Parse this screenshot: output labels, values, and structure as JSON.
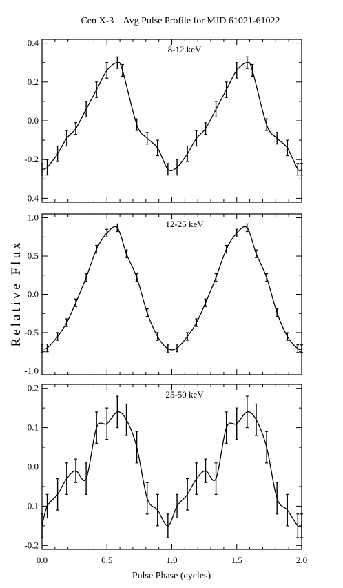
{
  "chart_data": {
    "type": "line",
    "title": "Cen X-3    Avg Pulse Profile for MJD 61021-61022",
    "xlabel": "Pulse Phase (cycles)",
    "ylabel": "Relative Flux",
    "xlim": [
      0.0,
      2.0
    ],
    "x_ticks": [
      "0.0",
      "0.5",
      "1.0",
      "1.5",
      "2.0"
    ],
    "grid": false,
    "panels": [
      {
        "label": "8-12 keV",
        "ylim": [
          -0.42,
          0.42
        ],
        "y_ticks": [
          "0.4",
          "0.2",
          "0.0",
          "-0.2",
          "-0.4"
        ],
        "y_tick_values": [
          0.4,
          0.2,
          0.0,
          -0.2,
          -0.4
        ],
        "x": [
          0.0,
          0.04,
          0.12,
          0.19,
          0.26,
          0.34,
          0.42,
          0.5,
          0.58,
          0.62,
          0.73,
          0.81,
          0.89,
          0.97,
          1.04,
          1.12,
          1.19,
          1.26,
          1.34,
          1.42,
          1.5,
          1.58,
          1.62,
          1.73,
          1.81,
          1.89,
          1.97,
          2.0
        ],
        "y": [
          -0.25,
          -0.24,
          -0.17,
          -0.09,
          -0.04,
          0.06,
          0.16,
          0.26,
          0.3,
          0.26,
          -0.02,
          -0.09,
          -0.14,
          -0.25,
          -0.24,
          -0.17,
          -0.09,
          -0.04,
          0.06,
          0.16,
          0.26,
          0.3,
          0.26,
          -0.02,
          -0.09,
          -0.14,
          -0.25,
          -0.25
        ],
        "err": [
          0.03,
          0.04,
          0.04,
          0.04,
          0.03,
          0.04,
          0.04,
          0.04,
          0.03,
          0.03,
          0.03,
          0.03,
          0.04,
          0.03,
          0.04,
          0.04,
          0.04,
          0.03,
          0.04,
          0.04,
          0.04,
          0.03,
          0.03,
          0.03,
          0.03,
          0.04,
          0.03,
          0.03
        ]
      },
      {
        "label": "12-25 keV",
        "ylim": [
          -1.05,
          1.05
        ],
        "y_ticks": [
          "1.0",
          "0.5",
          "0.0",
          "-0.5",
          "-1.0"
        ],
        "y_tick_values": [
          1.0,
          0.5,
          0.0,
          -0.5,
          -1.0
        ],
        "x": [
          0.0,
          0.04,
          0.12,
          0.19,
          0.26,
          0.34,
          0.42,
          0.5,
          0.58,
          0.65,
          0.73,
          0.81,
          0.89,
          0.97,
          1.04,
          1.12,
          1.19,
          1.26,
          1.34,
          1.42,
          1.5,
          1.58,
          1.65,
          1.73,
          1.81,
          1.89,
          1.97,
          2.0
        ],
        "y": [
          -0.71,
          -0.7,
          -0.55,
          -0.37,
          -0.11,
          0.22,
          0.59,
          0.8,
          0.87,
          0.53,
          0.22,
          -0.24,
          -0.55,
          -0.71,
          -0.7,
          -0.55,
          -0.37,
          -0.11,
          0.22,
          0.59,
          0.8,
          0.87,
          0.53,
          0.22,
          -0.24,
          -0.55,
          -0.71,
          -0.71
        ],
        "err": [
          0.05,
          0.05,
          0.05,
          0.05,
          0.05,
          0.05,
          0.05,
          0.05,
          0.05,
          0.05,
          0.05,
          0.05,
          0.05,
          0.05,
          0.05,
          0.05,
          0.05,
          0.05,
          0.05,
          0.05,
          0.05,
          0.05,
          0.05,
          0.05,
          0.05,
          0.05,
          0.05,
          0.05
        ]
      },
      {
        "label": "25-50 keV",
        "ylim": [
          -0.21,
          0.21
        ],
        "y_ticks": [
          "0.2",
          "0.1",
          "0.0",
          "-0.1",
          "-0.2"
        ],
        "y_tick_values": [
          0.2,
          0.1,
          0.0,
          -0.1,
          -0.2
        ],
        "x": [
          0.0,
          0.04,
          0.12,
          0.19,
          0.26,
          0.34,
          0.42,
          0.5,
          0.58,
          0.65,
          0.73,
          0.81,
          0.89,
          0.97,
          1.04,
          1.12,
          1.19,
          1.26,
          1.34,
          1.42,
          1.5,
          1.58,
          1.65,
          1.73,
          1.81,
          1.89,
          1.97,
          2.0
        ],
        "y": [
          -0.15,
          -0.1,
          -0.07,
          -0.03,
          -0.01,
          -0.03,
          0.1,
          0.11,
          0.14,
          0.12,
          0.05,
          -0.08,
          -0.11,
          -0.15,
          -0.1,
          -0.07,
          -0.03,
          -0.01,
          -0.03,
          0.1,
          0.11,
          0.14,
          0.12,
          0.05,
          -0.08,
          -0.11,
          -0.15,
          -0.15
        ],
        "err": [
          0.03,
          0.03,
          0.04,
          0.04,
          0.03,
          0.04,
          0.04,
          0.04,
          0.04,
          0.04,
          0.04,
          0.04,
          0.04,
          0.03,
          0.03,
          0.04,
          0.04,
          0.03,
          0.04,
          0.04,
          0.04,
          0.04,
          0.04,
          0.04,
          0.04,
          0.04,
          0.03,
          0.03
        ]
      }
    ]
  }
}
